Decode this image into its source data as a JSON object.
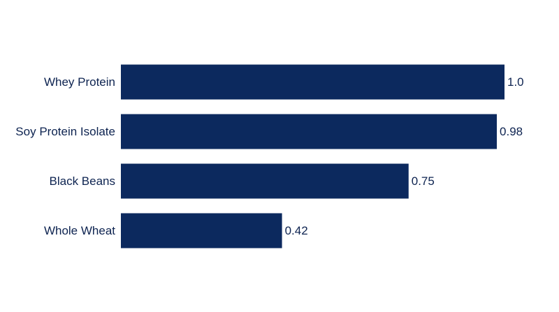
{
  "chart_data": {
    "type": "barh",
    "categories": [
      "Whey Protein",
      "Soy Protein Isolate",
      "Black Beans",
      "Whole Wheat"
    ],
    "values": [
      1,
      0.98,
      0.75,
      0.42
    ],
    "value_labels": [
      "1.0",
      "0.98",
      "0.75",
      "0.42"
    ],
    "color": "#0c295e"
  }
}
